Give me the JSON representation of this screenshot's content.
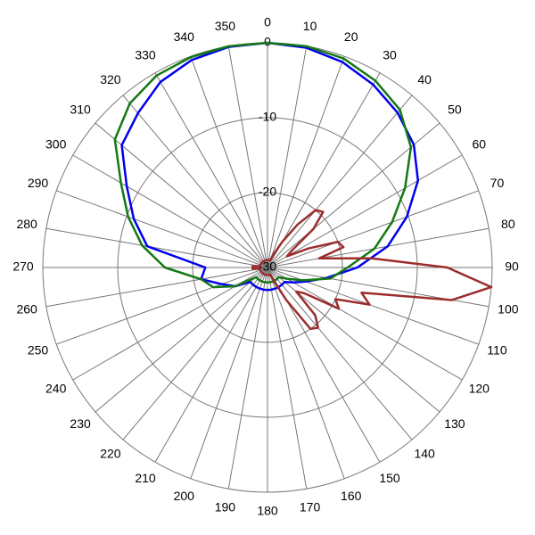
{
  "chart_data": {
    "type": "polar",
    "rlim": [
      -30,
      0
    ],
    "rticks": [
      -30,
      -20,
      -10,
      0
    ],
    "thetaticks": [
      0,
      10,
      20,
      30,
      40,
      50,
      60,
      70,
      80,
      90,
      100,
      110,
      120,
      130,
      140,
      150,
      160,
      170,
      180,
      190,
      200,
      210,
      220,
      230,
      240,
      250,
      260,
      270,
      280,
      290,
      300,
      310,
      320,
      330,
      340,
      350
    ],
    "series": [
      {
        "color": "#0000ee",
        "theta": [
          0,
          10,
          20,
          30,
          40,
          50,
          60,
          70,
          80,
          90,
          100,
          110,
          120,
          130,
          140,
          150,
          160,
          170,
          180,
          190,
          200,
          210,
          220,
          230,
          240,
          250,
          260,
          270,
          280,
          290,
          300,
          310,
          320,
          330,
          340,
          350
        ],
        "values": [
          0,
          -0.2,
          -0.8,
          -1.8,
          -3,
          -4.5,
          -6.8,
          -10.2,
          -13.7,
          -18,
          -22,
          -24.5,
          -26,
          -27,
          -27,
          -27,
          -27,
          -27,
          -27,
          -27,
          -27,
          -27,
          -27,
          -27,
          -25,
          -23.5,
          -21,
          -21.7,
          -13.7,
          -11,
          -8.3,
          -4.6,
          -3.1,
          -1.4,
          -0.5,
          -0.1
        ]
      },
      {
        "color": "#147814",
        "theta": [
          0,
          10,
          20,
          30,
          40,
          50,
          60,
          70,
          80,
          90,
          100,
          110,
          120,
          130,
          140,
          150,
          160,
          170,
          180,
          190,
          200,
          210,
          220,
          230,
          240,
          250,
          260,
          270,
          280,
          290,
          300,
          310,
          320,
          330,
          340,
          350
        ],
        "values": [
          0,
          0,
          -0.3,
          -1.2,
          -2.5,
          -5,
          -8.8,
          -12.3,
          -15.5,
          -19.3,
          -21.5,
          -25,
          -27,
          -28,
          -28,
          -28,
          -28,
          -28,
          -28,
          -28,
          -28,
          -28,
          -28,
          -28,
          -25,
          -22.3,
          -21,
          -16.3,
          -13,
          -10.2,
          -7.4,
          -3.4,
          -1.4,
          -0.4,
          -0.1,
          0
        ]
      },
      {
        "color": "#9b2d2d",
        "theta": [
          0,
          5,
          10,
          15,
          20,
          25,
          30,
          35,
          40,
          45,
          50,
          55,
          60,
          65,
          70,
          75,
          80,
          85,
          90,
          95,
          100,
          105,
          110,
          115,
          120,
          125,
          130,
          135,
          140,
          145,
          150,
          155,
          160,
          165,
          170,
          175,
          180,
          185,
          190,
          195,
          200,
          205,
          210,
          215,
          220,
          225,
          230,
          235,
          240,
          245,
          250,
          255,
          260,
          265,
          270,
          275,
          280,
          285,
          290,
          295,
          300,
          305,
          310,
          315,
          320,
          325,
          330,
          335,
          340,
          345,
          350,
          355
        ],
        "values": [
          -29,
          -29,
          -29,
          -29,
          -29,
          -28,
          -26,
          -23,
          -20,
          -19.5,
          -22,
          -26,
          -27,
          -24,
          -20,
          -19.5,
          -23,
          -16,
          -6,
          0,
          -5,
          -17,
          -15.5,
          -20,
          -19,
          -24,
          -25,
          -21,
          -19.5,
          -20,
          -25,
          -28,
          -29,
          -29,
          -29,
          -29,
          -29,
          -29,
          -29,
          -29,
          -29,
          -29,
          -29,
          -29,
          -29,
          -29,
          -29,
          -29,
          -29,
          -29,
          -29,
          -29,
          -29,
          -28,
          -28,
          -28,
          -29,
          -29,
          -29,
          -29,
          -29,
          -29,
          -29,
          -29,
          -29,
          -29,
          -29,
          -29,
          -29,
          -29,
          -29,
          -29
        ]
      }
    ]
  }
}
